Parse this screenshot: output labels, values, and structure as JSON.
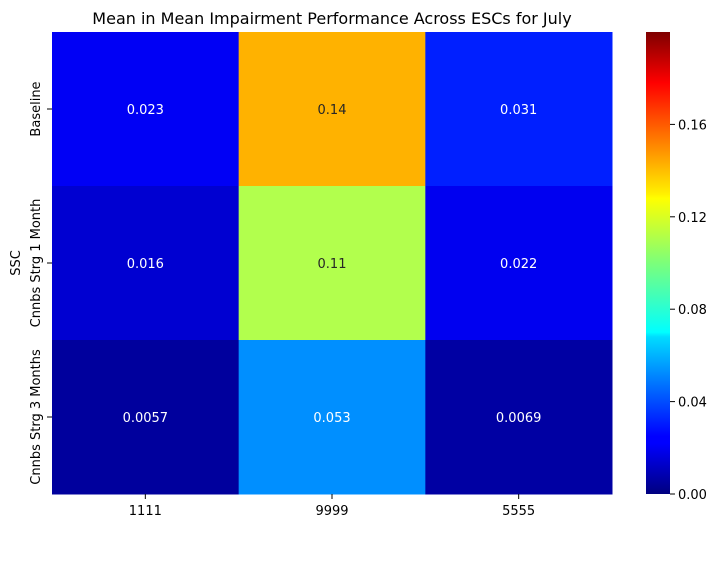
{
  "chart_data": {
    "type": "heatmap",
    "title": "Mean in Mean Impairment Performance Across ESCs for July",
    "xlabel": "",
    "ylabel": "SSC",
    "x_categories": [
      "1111",
      "9999",
      "5555"
    ],
    "y_categories": [
      "Baseline",
      "Cnnbs Strg 1 Month",
      "Cnnbs Strg 3 Months"
    ],
    "values": [
      [
        0.023,
        0.14,
        0.031
      ],
      [
        0.016,
        0.11,
        0.022
      ],
      [
        0.0057,
        0.053,
        0.0069
      ]
    ],
    "annotations": [
      [
        "0.023",
        "0.14",
        "0.031"
      ],
      [
        "0.016",
        "0.11",
        "0.022"
      ],
      [
        "0.0057",
        "0.053",
        "0.0069"
      ]
    ],
    "colormap": "jet",
    "vmin": 0,
    "vmax": 0.2,
    "colorbar_ticks": [
      "0.00",
      "0.04",
      "0.08",
      "0.12",
      "0.16"
    ],
    "colorbar_tick_values": [
      0,
      0.04,
      0.08,
      0.12,
      0.16
    ],
    "grid": false,
    "colorbar": "right"
  }
}
